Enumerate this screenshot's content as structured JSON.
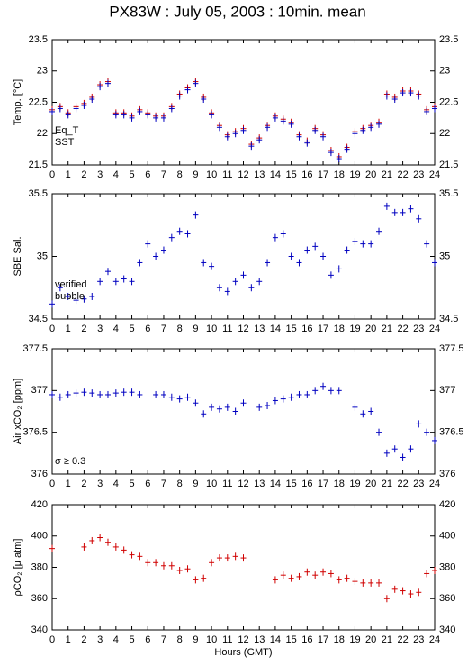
{
  "chart_data": [
    {
      "type": "scatter",
      "title": "PX83W : July 05, 2003 : 10min. mean",
      "ylabel": "Temp. [°C]",
      "x": [
        0,
        0.5,
        1,
        1.5,
        2,
        2.5,
        3,
        3.5,
        4,
        4.5,
        5,
        5.5,
        6,
        6.5,
        7,
        7.5,
        8,
        8.5,
        9,
        9.5,
        10,
        10.5,
        11,
        11.5,
        12,
        12.5,
        13,
        13.5,
        14,
        14.5,
        15,
        15.5,
        16,
        16.5,
        17,
        17.5,
        18,
        18.5,
        19,
        19.5,
        20,
        20.5,
        21,
        21.5,
        22,
        22.5,
        23,
        23.5,
        24
      ],
      "series": [
        {
          "name": "Eq_T",
          "color": "#d00000",
          "values": [
            22.38,
            22.43,
            22.33,
            22.43,
            22.48,
            22.58,
            22.78,
            22.83,
            22.33,
            22.33,
            22.28,
            22.38,
            22.33,
            22.28,
            22.28,
            22.43,
            22.63,
            22.73,
            22.83,
            22.58,
            22.33,
            22.13,
            21.98,
            22.03,
            22.08,
            21.83,
            21.93,
            22.13,
            22.28,
            22.23,
            22.18,
            21.98,
            21.88,
            22.08,
            21.98,
            21.73,
            21.63,
            21.78,
            22.03,
            22.08,
            22.13,
            22.18,
            22.63,
            22.58,
            22.68,
            22.68,
            22.63,
            22.38,
            22.43
          ]
        },
        {
          "name": "SST",
          "color": "#0000c0",
          "values": [
            22.35,
            22.4,
            22.3,
            22.4,
            22.45,
            22.55,
            22.75,
            22.8,
            22.3,
            22.3,
            22.25,
            22.35,
            22.3,
            22.25,
            22.25,
            22.4,
            22.6,
            22.7,
            22.8,
            22.55,
            22.3,
            22.1,
            21.95,
            22.0,
            22.05,
            21.8,
            21.9,
            22.1,
            22.25,
            22.2,
            22.15,
            21.95,
            21.85,
            22.05,
            21.95,
            21.7,
            21.6,
            21.75,
            22.0,
            22.05,
            22.1,
            22.15,
            22.6,
            22.55,
            22.65,
            22.65,
            22.6,
            22.35,
            22.4
          ]
        }
      ],
      "xlim": [
        0,
        24
      ],
      "xticks": [
        0,
        1,
        2,
        3,
        4,
        5,
        6,
        7,
        8,
        9,
        10,
        11,
        12,
        13,
        14,
        15,
        16,
        17,
        18,
        19,
        20,
        21,
        22,
        23,
        24
      ],
      "ylim": [
        21.5,
        23.5
      ],
      "yticks": [
        21.5,
        22,
        22.5,
        23,
        23.5
      ]
    },
    {
      "type": "scatter",
      "ylabel": "SBE Sal.",
      "x": [
        0,
        0.5,
        1,
        1.5,
        2,
        2.5,
        3,
        3.5,
        4,
        4.5,
        5,
        5.5,
        6,
        6.5,
        7,
        7.5,
        8,
        8.5,
        9,
        9.5,
        10,
        10.5,
        11,
        11.5,
        12,
        12.5,
        13,
        13.5,
        14,
        14.5,
        15,
        15.5,
        16,
        16.5,
        17,
        17.5,
        18,
        18.5,
        19,
        19.5,
        20,
        20.5,
        21,
        21.5,
        22,
        22.5,
        23,
        23.5,
        24
      ],
      "series": [
        {
          "name": "verified",
          "color": "#0000c0",
          "values": [
            34.62,
            34.75,
            34.68,
            34.65,
            34.66,
            34.68,
            34.8,
            34.88,
            34.8,
            34.82,
            34.8,
            34.95,
            35.1,
            35.0,
            35.05,
            35.15,
            35.2,
            35.18,
            35.33,
            34.95,
            34.92,
            34.75,
            34.72,
            34.8,
            34.85,
            34.75,
            34.8,
            34.95,
            35.15,
            35.18,
            35.0,
            34.95,
            35.05,
            35.08,
            35.0,
            34.85,
            34.9,
            35.05,
            35.12,
            35.1,
            35.1,
            35.2,
            35.4,
            35.35,
            35.35,
            35.38,
            35.3,
            35.1,
            34.95
          ]
        }
      ],
      "annotation": "bubble",
      "annotation_color": "#c000c0",
      "xlim": [
        0,
        24
      ],
      "xticks": [
        0,
        1,
        2,
        3,
        4,
        5,
        6,
        7,
        8,
        9,
        10,
        11,
        12,
        13,
        14,
        15,
        16,
        17,
        18,
        19,
        20,
        21,
        22,
        23,
        24
      ],
      "ylim": [
        34.5,
        35.5
      ],
      "yticks": [
        34.5,
        35,
        35.5
      ]
    },
    {
      "type": "scatter",
      "ylabel": "Air xCO₂ [ppm]",
      "color": "#0000c0",
      "x": [
        0,
        0.5,
        1,
        1.5,
        2,
        2.5,
        3,
        3.5,
        4,
        4.5,
        5,
        5.5,
        6,
        6.5,
        7,
        7.5,
        8,
        8.5,
        9,
        9.5,
        10,
        10.5,
        11,
        11.5,
        12,
        12.5,
        13,
        13.5,
        14,
        14.5,
        15,
        15.5,
        16,
        16.5,
        17,
        17.5,
        18,
        18.5,
        19,
        19.5,
        20,
        20.5,
        21,
        21.5,
        22,
        22.5,
        23,
        23.5,
        24
      ],
      "values": [
        376.95,
        376.92,
        376.95,
        376.97,
        376.98,
        376.97,
        376.95,
        376.95,
        376.97,
        376.98,
        376.98,
        376.95,
        null,
        376.95,
        376.95,
        376.92,
        376.9,
        376.92,
        376.85,
        376.72,
        376.8,
        376.78,
        376.8,
        376.75,
        376.85,
        null,
        376.8,
        376.82,
        376.88,
        376.9,
        376.92,
        376.95,
        376.95,
        377.0,
        377.05,
        377.0,
        377.0,
        null,
        376.8,
        376.72,
        376.75,
        376.5,
        376.25,
        376.3,
        376.2,
        376.3,
        376.6,
        376.5,
        376.4
      ],
      "annotation": "σ ≥ 0.3",
      "annotation_color": "#c000c0",
      "xlim": [
        0,
        24
      ],
      "xticks": [
        0,
        1,
        2,
        3,
        4,
        5,
        6,
        7,
        8,
        9,
        10,
        11,
        12,
        13,
        14,
        15,
        16,
        17,
        18,
        19,
        20,
        21,
        22,
        23,
        24
      ],
      "ylim": [
        376,
        377.5
      ],
      "yticks": [
        376,
        376.5,
        377,
        377.5
      ]
    },
    {
      "type": "scatter",
      "ylabel": "ρCO₂ [μ atm]",
      "xlabel": "Hours (GMT)",
      "color": "#d00000",
      "x": [
        0,
        0.5,
        1,
        1.5,
        2,
        2.5,
        3,
        3.5,
        4,
        4.5,
        5,
        5.5,
        6,
        6.5,
        7,
        7.5,
        8,
        8.5,
        9,
        9.5,
        10,
        10.5,
        11,
        11.5,
        12,
        12.5,
        13,
        13.5,
        14,
        14.5,
        15,
        15.5,
        16,
        16.5,
        17,
        17.5,
        18,
        18.5,
        19,
        19.5,
        20,
        20.5,
        21,
        21.5,
        22,
        22.5,
        23,
        23.5,
        24
      ],
      "values": [
        392,
        null,
        null,
        null,
        393,
        397,
        399,
        396,
        393,
        391,
        388,
        387,
        383,
        383,
        381,
        381,
        378,
        379,
        372,
        373,
        383,
        386,
        386,
        387,
        386,
        null,
        null,
        null,
        372,
        375,
        373,
        374,
        377,
        375,
        377,
        376,
        372,
        373,
        371,
        370,
        370,
        370,
        360,
        366,
        365,
        363,
        364,
        376,
        378
      ],
      "xlim": [
        0,
        24
      ],
      "xticks": [
        0,
        1,
        2,
        3,
        4,
        5,
        6,
        7,
        8,
        9,
        10,
        11,
        12,
        13,
        14,
        15,
        16,
        17,
        18,
        19,
        20,
        21,
        22,
        23,
        24
      ],
      "ylim": [
        340,
        420
      ],
      "yticks": [
        340,
        360,
        380,
        400,
        420
      ]
    }
  ]
}
